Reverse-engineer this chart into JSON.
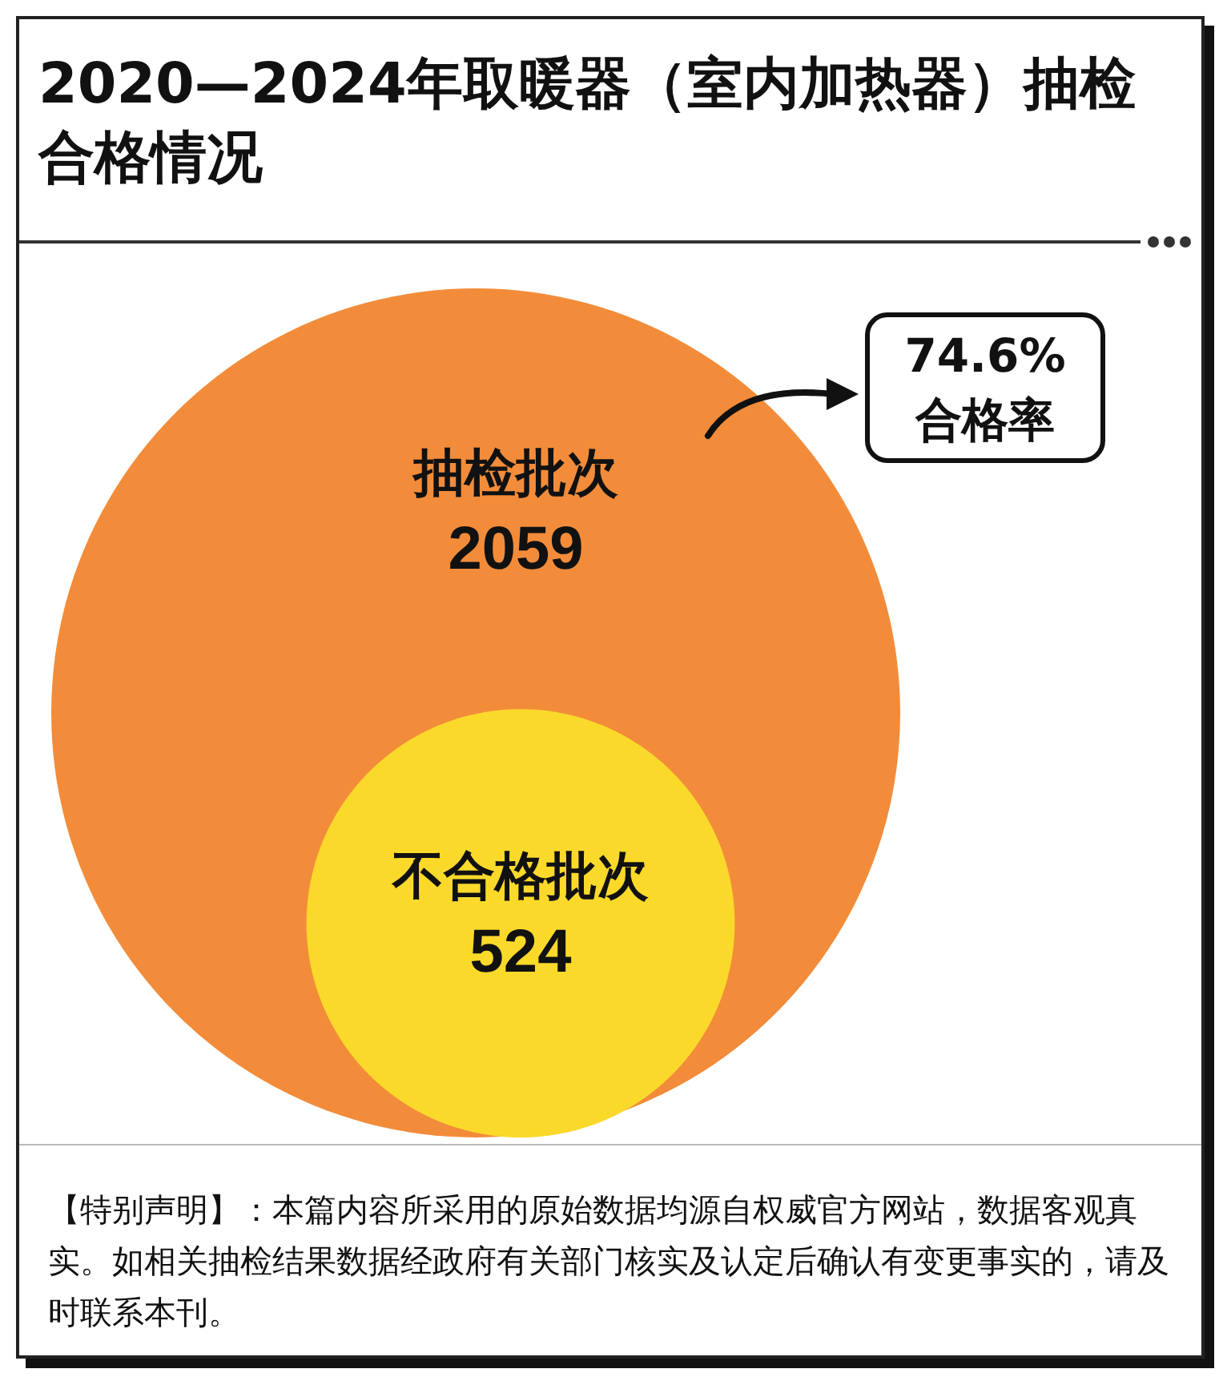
{
  "chart_data": {
    "type": "other",
    "title": "2020—2024年取暖器（室内加热器）抽检合格情况",
    "categories": [
      "抽检批次",
      "不合格批次"
    ],
    "values": [
      2059,
      524
    ],
    "colors": [
      "#f28c3a",
      "#fbd92b"
    ],
    "data_labels": true,
    "annotations": [
      "74.6%\n合格率",
      "【特别声明】：本篇内容所采用的原始数据均源自权威官方网站，数据客观真实。如相关抽检结果数据经政府有关部门核实及认定后确认有变更事实的，请及时联系本刊。"
    ]
  }
}
